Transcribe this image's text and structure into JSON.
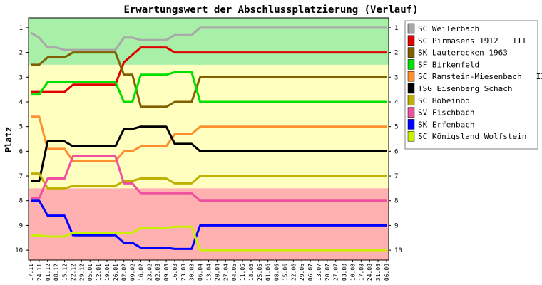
{
  "chart_data": {
    "type": "line",
    "title": "Erwartungswert der Abschlussplatzierung (Verlauf)",
    "xlabel": "",
    "ylabel": "Platz",
    "ylim": [
      0.6,
      10.4
    ],
    "y_inverted": true,
    "yticks": [
      1,
      2,
      3,
      4,
      5,
      6,
      7,
      8,
      9,
      10
    ],
    "grid": false,
    "legend_position": "right",
    "x": [
      "17.11",
      "24.11",
      "01.12",
      "08.12",
      "15.12",
      "22.12",
      "29.12",
      "05.01",
      "12.01",
      "19.01",
      "26.01",
      "02.02",
      "09.02",
      "16.02",
      "23.02",
      "02.03",
      "09.03",
      "16.03",
      "23.03",
      "30.03",
      "06.04",
      "13.04",
      "20.04",
      "27.04",
      "04.05",
      "11.05",
      "18.05",
      "25.05",
      "01.06",
      "08.06",
      "15.06",
      "22.06",
      "29.06",
      "06.07",
      "13.07",
      "20.07",
      "27.07",
      "03.08",
      "10.08",
      "17.08",
      "24.08",
      "31.08",
      "06.09"
    ],
    "bands": [
      {
        "name": "promotion-zone",
        "color": "#a8f0a8",
        "from": 0.6,
        "to": 2.5
      },
      {
        "name": "middle-zone",
        "color": "#ffffc0",
        "from": 2.5,
        "to": 7.5
      },
      {
        "name": "relegation-zone",
        "color": "#ffb0b0",
        "from": 7.5,
        "to": 10.4
      }
    ],
    "series": [
      {
        "name": "SC Weilerbach",
        "color": "#a8a8a8",
        "values": [
          1.2,
          1.4,
          1.8,
          1.8,
          1.9,
          1.9,
          1.9,
          1.9,
          1.9,
          1.9,
          1.9,
          1.4,
          1.4,
          1.5,
          1.5,
          1.5,
          1.5,
          1.3,
          1.3,
          1.3,
          1.0,
          1.0,
          1.0,
          1.0,
          1.0,
          1.0,
          1.0,
          1.0,
          1.0,
          1.0,
          1.0,
          1.0,
          1.0,
          1.0,
          1.0,
          1.0,
          1.0,
          1.0,
          1.0,
          1.0,
          1.0,
          1.0,
          1.0
        ]
      },
      {
        "name": "SC Pirmasens 1912   III",
        "color": "#e00000",
        "values": [
          3.6,
          3.6,
          3.6,
          3.6,
          3.6,
          3.3,
          3.3,
          3.3,
          3.3,
          3.3,
          3.3,
          2.4,
          2.1,
          1.8,
          1.8,
          1.8,
          1.8,
          2.0,
          2.0,
          2.0,
          2.0,
          2.0,
          2.0,
          2.0,
          2.0,
          2.0,
          2.0,
          2.0,
          2.0,
          2.0,
          2.0,
          2.0,
          2.0,
          2.0,
          2.0,
          2.0,
          2.0,
          2.0,
          2.0,
          2.0,
          2.0,
          2.0,
          2.0
        ]
      },
      {
        "name": "SK Lauterecken 1963",
        "color": "#806000",
        "values": [
          2.5,
          2.5,
          2.2,
          2.2,
          2.2,
          2.0,
          2.0,
          2.0,
          2.0,
          2.0,
          2.0,
          2.9,
          2.9,
          4.2,
          4.2,
          4.2,
          4.2,
          4.0,
          4.0,
          4.0,
          3.0,
          3.0,
          3.0,
          3.0,
          3.0,
          3.0,
          3.0,
          3.0,
          3.0,
          3.0,
          3.0,
          3.0,
          3.0,
          3.0,
          3.0,
          3.0,
          3.0,
          3.0,
          3.0,
          3.0,
          3.0,
          3.0,
          3.0
        ]
      },
      {
        "name": "SF Birkenfeld",
        "color": "#00e000",
        "values": [
          3.7,
          3.7,
          3.2,
          3.2,
          3.2,
          3.2,
          3.2,
          3.2,
          3.2,
          3.2,
          3.2,
          4.0,
          4.0,
          2.9,
          2.9,
          2.9,
          2.9,
          2.8,
          2.8,
          2.8,
          4.0,
          4.0,
          4.0,
          4.0,
          4.0,
          4.0,
          4.0,
          4.0,
          4.0,
          4.0,
          4.0,
          4.0,
          4.0,
          4.0,
          4.0,
          4.0,
          4.0,
          4.0,
          4.0,
          4.0,
          4.0,
          4.0,
          4.0
        ]
      },
      {
        "name": "SC Ramstein-Miesenbach   II",
        "color": "#ff9030",
        "values": [
          4.6,
          4.6,
          5.9,
          5.9,
          5.9,
          6.4,
          6.4,
          6.4,
          6.4,
          6.4,
          6.4,
          6.0,
          6.0,
          5.8,
          5.8,
          5.8,
          5.8,
          5.3,
          5.3,
          5.3,
          5.0,
          5.0,
          5.0,
          5.0,
          5.0,
          5.0,
          5.0,
          5.0,
          5.0,
          5.0,
          5.0,
          5.0,
          5.0,
          5.0,
          5.0,
          5.0,
          5.0,
          5.0,
          5.0,
          5.0,
          5.0,
          5.0,
          5.0
        ]
      },
      {
        "name": "TSG Eisenberg Schach",
        "color": "#000000",
        "values": [
          7.2,
          7.2,
          5.6,
          5.6,
          5.6,
          5.8,
          5.8,
          5.8,
          5.8,
          5.8,
          5.8,
          5.1,
          5.1,
          5.0,
          5.0,
          5.0,
          5.0,
          5.7,
          5.7,
          5.7,
          6.0,
          6.0,
          6.0,
          6.0,
          6.0,
          6.0,
          6.0,
          6.0,
          6.0,
          6.0,
          6.0,
          6.0,
          6.0,
          6.0,
          6.0,
          6.0,
          6.0,
          6.0,
          6.0,
          6.0,
          6.0,
          6.0,
          6.0
        ]
      },
      {
        "name": "SC Höheinöd",
        "color": "#c0b000",
        "values": [
          6.9,
          6.9,
          7.5,
          7.5,
          7.5,
          7.4,
          7.4,
          7.4,
          7.4,
          7.4,
          7.4,
          7.2,
          7.2,
          7.1,
          7.1,
          7.1,
          7.1,
          7.3,
          7.3,
          7.3,
          7.0,
          7.0,
          7.0,
          7.0,
          7.0,
          7.0,
          7.0,
          7.0,
          7.0,
          7.0,
          7.0,
          7.0,
          7.0,
          7.0,
          7.0,
          7.0,
          7.0,
          7.0,
          7.0,
          7.0,
          7.0,
          7.0,
          7.0
        ]
      },
      {
        "name": "SV Fischbach",
        "color": "#f050a0",
        "values": [
          7.9,
          7.9,
          7.1,
          7.1,
          7.1,
          6.2,
          6.2,
          6.2,
          6.2,
          6.2,
          6.2,
          7.3,
          7.3,
          7.7,
          7.7,
          7.7,
          7.7,
          7.7,
          7.7,
          7.7,
          8.0,
          8.0,
          8.0,
          8.0,
          8.0,
          8.0,
          8.0,
          8.0,
          8.0,
          8.0,
          8.0,
          8.0,
          8.0,
          8.0,
          8.0,
          8.0,
          8.0,
          8.0,
          8.0,
          8.0,
          8.0,
          8.0,
          8.0
        ]
      },
      {
        "name": "SK Erfenbach",
        "color": "#0000ff",
        "values": [
          8.0,
          8.0,
          8.6,
          8.6,
          8.6,
          9.4,
          9.4,
          9.4,
          9.4,
          9.4,
          9.4,
          9.7,
          9.7,
          9.9,
          9.9,
          9.9,
          9.9,
          9.95,
          9.95,
          9.95,
          9.0,
          9.0,
          9.0,
          9.0,
          9.0,
          9.0,
          9.0,
          9.0,
          9.0,
          9.0,
          9.0,
          9.0,
          9.0,
          9.0,
          9.0,
          9.0,
          9.0,
          9.0,
          9.0,
          9.0,
          9.0,
          9.0,
          9.0
        ]
      },
      {
        "name": "SC Königsland Wolfstein",
        "color": "#c8f000",
        "values": [
          9.4,
          9.4,
          9.45,
          9.45,
          9.45,
          9.3,
          9.3,
          9.3,
          9.3,
          9.3,
          9.3,
          9.3,
          9.3,
          9.1,
          9.1,
          9.1,
          9.1,
          9.05,
          9.05,
          9.05,
          10.0,
          10.0,
          10.0,
          10.0,
          10.0,
          10.0,
          10.0,
          10.0,
          10.0,
          10.0,
          10.0,
          10.0,
          10.0,
          10.0,
          10.0,
          10.0,
          10.0,
          10.0,
          10.0,
          10.0,
          10.0,
          10.0,
          10.0
        ]
      }
    ]
  }
}
